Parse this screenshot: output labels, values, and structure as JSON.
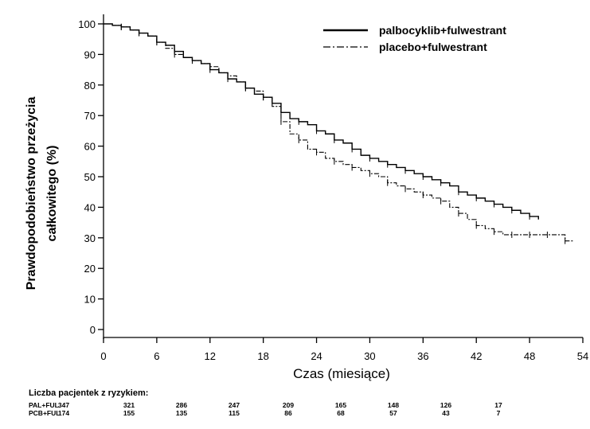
{
  "chart_data": {
    "type": "line",
    "xlabel": "Czas (miesiące)",
    "ylabel_line1": "Prawdopodobieństwo przeżycia",
    "ylabel_line2": "całkowitego (%)",
    "xlim": [
      0,
      54
    ],
    "ylim": [
      0,
      100
    ],
    "xticks": [
      0,
      6,
      12,
      18,
      24,
      30,
      36,
      42,
      48,
      54
    ],
    "yticks": [
      0,
      10,
      20,
      30,
      40,
      50,
      60,
      70,
      80,
      90,
      100
    ],
    "grid": false,
    "legend_position": "top-right",
    "series": [
      {
        "name": "palbocyklib+fulwestrant",
        "style": "solid",
        "x": [
          0,
          1,
          2,
          3,
          4,
          5,
          6,
          7,
          8,
          9,
          10,
          11,
          12,
          13,
          14,
          15,
          16,
          17,
          18,
          19,
          20,
          21,
          22,
          23,
          24,
          25,
          26,
          27,
          28,
          29,
          30,
          31,
          32,
          33,
          34,
          35,
          36,
          37,
          38,
          39,
          40,
          41,
          42,
          43,
          44,
          45,
          46,
          47,
          48,
          49
        ],
        "y": [
          100,
          99.5,
          99,
          98,
          97,
          96,
          94,
          93,
          91,
          89,
          88,
          87,
          85,
          84,
          82,
          81,
          79,
          77,
          76,
          74,
          71,
          69,
          68,
          67,
          65,
          64,
          62,
          61,
          59,
          57,
          56,
          55,
          54,
          53,
          52,
          51,
          50,
          49,
          48,
          47,
          45,
          44,
          43,
          42,
          41,
          40,
          39,
          38,
          37,
          36
        ]
      },
      {
        "name": "placebo+fulwestrant",
        "style": "dash-dot",
        "x": [
          0,
          1,
          2,
          3,
          4,
          5,
          6,
          7,
          8,
          9,
          10,
          11,
          12,
          13,
          14,
          15,
          16,
          17,
          18,
          19,
          20,
          21,
          22,
          23,
          24,
          25,
          26,
          27,
          28,
          29,
          30,
          31,
          32,
          33,
          34,
          35,
          36,
          37,
          38,
          39,
          40,
          41,
          42,
          43,
          44,
          45,
          46,
          47,
          48,
          49,
          50,
          51,
          52,
          53
        ],
        "y": [
          100,
          99.5,
          99,
          98,
          97,
          96,
          94,
          92,
          90,
          89,
          88,
          87,
          86,
          84,
          83,
          81,
          79,
          78,
          76,
          73,
          68,
          64,
          62,
          59,
          58,
          56,
          55,
          54,
          53,
          52,
          51,
          50,
          48,
          47,
          46,
          45,
          44,
          43,
          42,
          40,
          38,
          36,
          34,
          33,
          32,
          31,
          31,
          31,
          31,
          31,
          31,
          31,
          29,
          29
        ]
      }
    ],
    "risk_table": {
      "title": "Liczba pacjentek z ryzykiem:",
      "rows": [
        {
          "label": "PAL+FUL",
          "values": [
            "347",
            "321",
            "286",
            "247",
            "209",
            "165",
            "148",
            "126",
            "17"
          ]
        },
        {
          "label": "PCB+FUL",
          "values": [
            "174",
            "155",
            "135",
            "115",
            "86",
            "68",
            "57",
            "43",
            "7"
          ]
        }
      ]
    }
  }
}
